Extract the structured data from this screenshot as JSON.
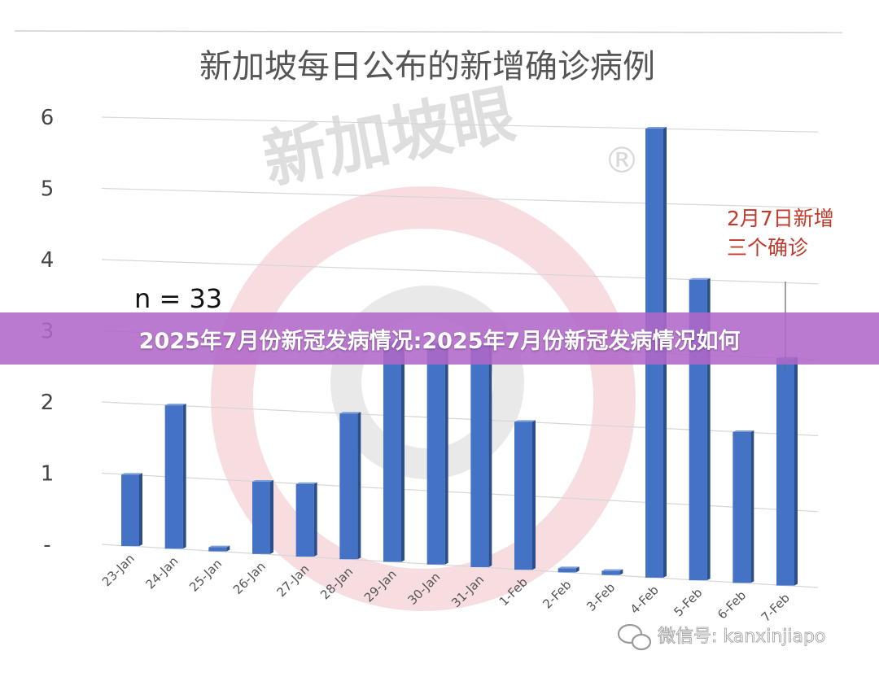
{
  "banner": {
    "text": "2025年7月份新冠发病情况:2025年7月份新冠发病情况如何"
  },
  "watermark": {
    "text": "新加坡眼",
    "registered_mark": "®"
  },
  "credit": {
    "icon": "wechat-icon",
    "text": "微信号: kanxinjiapo"
  },
  "chart_data": {
    "type": "bar",
    "title": "新加坡每日公布的新增确诊病例",
    "categories": [
      "23-Jan",
      "24-Jan",
      "25-Jan",
      "26-Jan",
      "27-Jan",
      "28-Jan",
      "29-Jan",
      "30-Jan",
      "31-Jan",
      "1-Feb",
      "2-Feb",
      "3-Feb",
      "4-Feb",
      "5-Feb",
      "6-Feb",
      "7-Feb"
    ],
    "values": [
      1,
      2,
      0,
      1,
      1,
      2,
      3,
      3,
      3,
      2,
      0,
      0,
      6,
      4,
      2,
      3
    ],
    "yticks": [
      "-",
      "1",
      "2",
      "3",
      "4",
      "5",
      "6"
    ],
    "ylim": [
      0,
      6
    ],
    "grid": true,
    "legend": "none",
    "bar_color": "#4472c4",
    "sample_size_label": "n = 33",
    "annotation": {
      "lines": [
        "2月7日新增",
        "三个确诊"
      ],
      "color": "#c0392b",
      "target_category": "7-Feb"
    }
  }
}
